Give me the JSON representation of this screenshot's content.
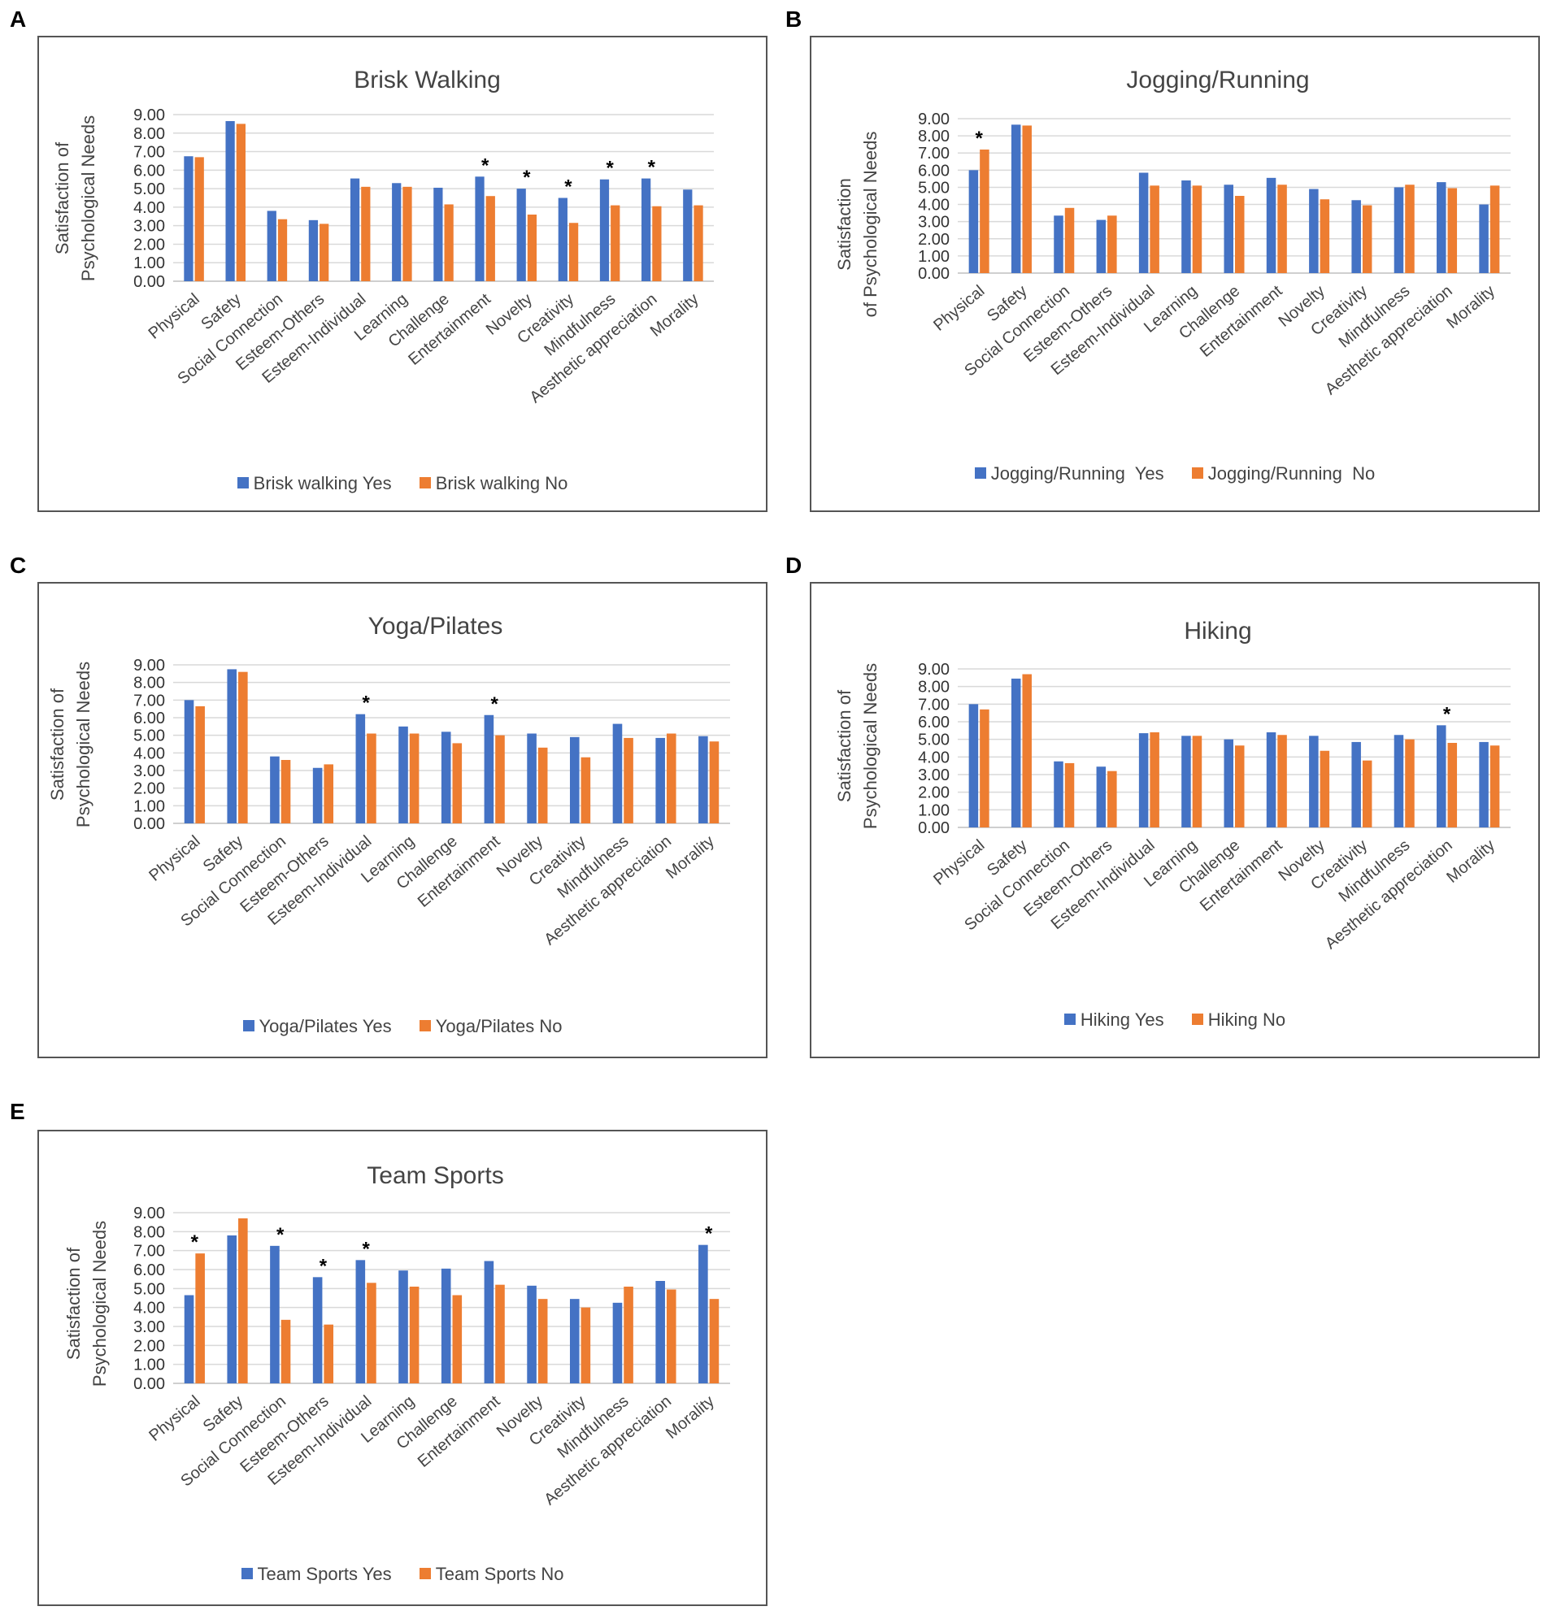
{
  "colors": {
    "yes": "#4472C4",
    "no": "#ED7D31",
    "grid": "#d9d9d9",
    "axis_text": "#444444"
  },
  "chart_data": [
    {
      "panel": "A",
      "type": "bar",
      "title": "Brisk Walking",
      "ylabel_line1": "Satisfaction of",
      "ylabel_line2": "Psychological Needs",
      "ylim": [
        0,
        9
      ],
      "yticks": [
        "0.00",
        "1.00",
        "2.00",
        "3.00",
        "4.00",
        "5.00",
        "6.00",
        "7.00",
        "8.00",
        "9.00"
      ],
      "categories": [
        "Physical",
        "Safety",
        "Social Connection",
        "Esteem-Others",
        "Esteem-Individual",
        "Learning",
        "Challenge",
        "Entertainment",
        "Novelty",
        "Creativity",
        "Mindfulness",
        "Aesthetic appreciation",
        "Morality"
      ],
      "series": [
        {
          "name": "Brisk walking Yes",
          "values": [
            6.75,
            8.65,
            3.8,
            3.3,
            5.55,
            5.3,
            5.05,
            5.65,
            5.0,
            4.5,
            5.5,
            5.55,
            4.95
          ]
        },
        {
          "name": "Brisk walking No",
          "values": [
            6.7,
            8.5,
            3.35,
            3.1,
            5.1,
            5.1,
            4.15,
            4.6,
            3.6,
            3.15,
            4.1,
            4.05,
            4.1
          ]
        }
      ],
      "significant": [
        false,
        false,
        false,
        false,
        false,
        false,
        false,
        true,
        true,
        true,
        true,
        true,
        false
      ],
      "sig_marker": "*"
    },
    {
      "panel": "B",
      "type": "bar",
      "title": "Jogging/Running",
      "ylabel_line1": "Satisfaction",
      "ylabel_line2": "of Psychological Needs",
      "ylim": [
        0,
        9
      ],
      "yticks": [
        "0.00",
        "1.00",
        "2.00",
        "3.00",
        "4.00",
        "5.00",
        "6.00",
        "7.00",
        "8.00",
        "9.00"
      ],
      "categories": [
        "Physical",
        "Safety",
        "Social Connection",
        "Esteem-Others",
        "Esteem-Individual",
        "Learning",
        "Challenge",
        "Entertainment",
        "Novelty",
        "Creativity",
        "Mindfulness",
        "Aesthetic appreciation",
        "Morality"
      ],
      "series": [
        {
          "name": "Jogging/Running  Yes",
          "values": [
            6.0,
            8.65,
            3.35,
            3.1,
            5.85,
            5.4,
            5.15,
            5.55,
            4.9,
            4.25,
            5.0,
            5.3,
            4.0
          ]
        },
        {
          "name": "Jogging/Running  No",
          "values": [
            7.2,
            8.6,
            3.8,
            3.35,
            5.1,
            5.1,
            4.5,
            5.15,
            4.3,
            3.95,
            5.15,
            4.95,
            5.1
          ]
        }
      ],
      "significant": [
        true,
        false,
        false,
        false,
        false,
        false,
        false,
        false,
        false,
        false,
        false,
        false,
        false
      ],
      "sig_marker": "*"
    },
    {
      "panel": "C",
      "type": "bar",
      "title": "Yoga/Pilates",
      "ylabel_line1": "Satisfaction of",
      "ylabel_line2": "Psychological Needs",
      "ylim": [
        0,
        9
      ],
      "yticks": [
        "0.00",
        "1.00",
        "2.00",
        "3.00",
        "4.00",
        "5.00",
        "6.00",
        "7.00",
        "8.00",
        "9.00"
      ],
      "categories": [
        "Physical",
        "Safety",
        "Social Connection",
        "Esteem-Others",
        "Esteem-Individual",
        "Learning",
        "Challenge",
        "Entertainment",
        "Novelty",
        "Creativity",
        "Mindfulness",
        "Aesthetic appreciation",
        "Morality"
      ],
      "series": [
        {
          "name": "Yoga/Pilates Yes",
          "values": [
            7.0,
            8.75,
            3.8,
            3.15,
            6.2,
            5.5,
            5.2,
            6.15,
            5.1,
            4.9,
            5.65,
            4.85,
            4.95
          ]
        },
        {
          "name": "Yoga/Pilates No",
          "values": [
            6.65,
            8.6,
            3.6,
            3.35,
            5.1,
            5.1,
            4.55,
            5.0,
            4.3,
            3.75,
            4.85,
            5.1,
            4.65
          ]
        }
      ],
      "significant": [
        false,
        false,
        false,
        false,
        true,
        false,
        false,
        true,
        false,
        false,
        false,
        false,
        false
      ],
      "sig_marker": "*"
    },
    {
      "panel": "D",
      "type": "bar",
      "title": "Hiking",
      "ylabel_line1": "Satisfaction of",
      "ylabel_line2": "Psychological Needs",
      "ylim": [
        0,
        9
      ],
      "yticks": [
        "0.00",
        "1.00",
        "2.00",
        "3.00",
        "4.00",
        "5.00",
        "6.00",
        "7.00",
        "8.00",
        "9.00"
      ],
      "categories": [
        "Physical",
        "Safety",
        "Social Connection",
        "Esteem-Others",
        "Esteem-Individual",
        "Learning",
        "Challenge",
        "Entertainment",
        "Novelty",
        "Creativity",
        "Mindfulness",
        "Aesthetic appreciation",
        "Morality"
      ],
      "series": [
        {
          "name": "Hiking Yes",
          "values": [
            7.0,
            8.45,
            3.75,
            3.45,
            5.35,
            5.2,
            5.0,
            5.4,
            5.2,
            4.85,
            5.25,
            5.8,
            4.85
          ]
        },
        {
          "name": "Hiking No",
          "values": [
            6.7,
            8.7,
            3.65,
            3.2,
            5.4,
            5.2,
            4.65,
            5.25,
            4.35,
            3.8,
            5.0,
            4.8,
            4.65
          ]
        }
      ],
      "significant": [
        false,
        false,
        false,
        false,
        false,
        false,
        false,
        false,
        false,
        false,
        false,
        true,
        false
      ],
      "sig_marker": "*"
    },
    {
      "panel": "E",
      "type": "bar",
      "title": "Team Sports",
      "ylabel_line1": "Satisfaction of",
      "ylabel_line2": "Psychological Needs",
      "ylim": [
        0,
        9
      ],
      "yticks": [
        "0.00",
        "1.00",
        "2.00",
        "3.00",
        "4.00",
        "5.00",
        "6.00",
        "7.00",
        "8.00",
        "9.00"
      ],
      "categories": [
        "Physical",
        "Safety",
        "Social Connection",
        "Esteem-Others",
        "Esteem-Individual",
        "Learning",
        "Challenge",
        "Entertainment",
        "Novelty",
        "Creativity",
        "Mindfulness",
        "Aesthetic appreciation",
        "Morality"
      ],
      "series": [
        {
          "name": "Team Sports Yes",
          "values": [
            4.65,
            7.8,
            7.25,
            5.6,
            6.5,
            5.95,
            6.05,
            6.45,
            5.15,
            4.45,
            4.25,
            5.4,
            7.3
          ]
        },
        {
          "name": "Team Sports No",
          "values": [
            6.85,
            8.7,
            3.35,
            3.1,
            5.3,
            5.1,
            4.65,
            5.2,
            4.45,
            4.0,
            5.1,
            4.95,
            4.45
          ]
        }
      ],
      "significant": [
        true,
        false,
        true,
        true,
        true,
        false,
        false,
        false,
        false,
        false,
        false,
        false,
        true
      ],
      "sig_marker": "*"
    }
  ]
}
